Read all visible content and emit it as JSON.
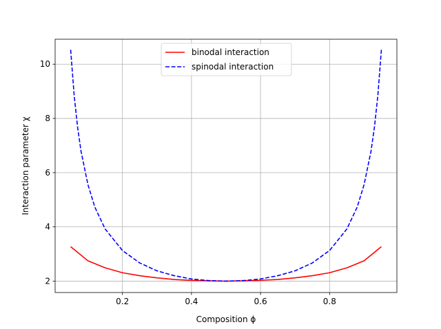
{
  "chart_data": {
    "type": "line",
    "xlabel": "Composition ϕ",
    "ylabel": "Interaction parameter χ",
    "xlim": [
      0.005,
      0.995
    ],
    "ylim": [
      1.58,
      10.92
    ],
    "xticks": [
      0.2,
      0.4,
      0.6,
      0.8
    ],
    "xtick_labels": [
      "0.2",
      "0.4",
      "0.6",
      "0.8"
    ],
    "yticks": [
      2,
      4,
      6,
      8,
      10
    ],
    "ytick_labels": [
      "2",
      "4",
      "6",
      "8",
      "10"
    ],
    "grid": true,
    "legend_position": "top-center",
    "series": [
      {
        "name": "binodal interaction",
        "color": "#ff0000",
        "dash": "solid",
        "x": [
          0.05,
          0.1,
          0.15,
          0.2,
          0.25,
          0.3,
          0.35,
          0.4,
          0.45,
          0.5,
          0.55,
          0.6,
          0.65,
          0.7,
          0.75,
          0.8,
          0.85,
          0.9,
          0.95
        ],
        "y": [
          3.27,
          2.75,
          2.49,
          2.31,
          2.2,
          2.12,
          2.06,
          2.03,
          2.01,
          2.0,
          2.01,
          2.03,
          2.06,
          2.12,
          2.2,
          2.31,
          2.49,
          2.75,
          3.27
        ]
      },
      {
        "name": "spinodal interaction",
        "color": "#0000ff",
        "dash": "dashed",
        "x": [
          0.05,
          0.06,
          0.07,
          0.08,
          0.1,
          0.12,
          0.15,
          0.2,
          0.25,
          0.3,
          0.35,
          0.4,
          0.45,
          0.5,
          0.55,
          0.6,
          0.65,
          0.7,
          0.75,
          0.8,
          0.85,
          0.88,
          0.9,
          0.92,
          0.93,
          0.94,
          0.95
        ],
        "y": [
          10.53,
          8.87,
          7.68,
          6.79,
          5.56,
          4.73,
          3.92,
          3.13,
          2.67,
          2.38,
          2.2,
          2.08,
          2.02,
          2.0,
          2.02,
          2.08,
          2.2,
          2.38,
          2.67,
          3.13,
          3.92,
          4.73,
          5.56,
          6.79,
          7.68,
          8.87,
          10.53
        ]
      }
    ]
  }
}
